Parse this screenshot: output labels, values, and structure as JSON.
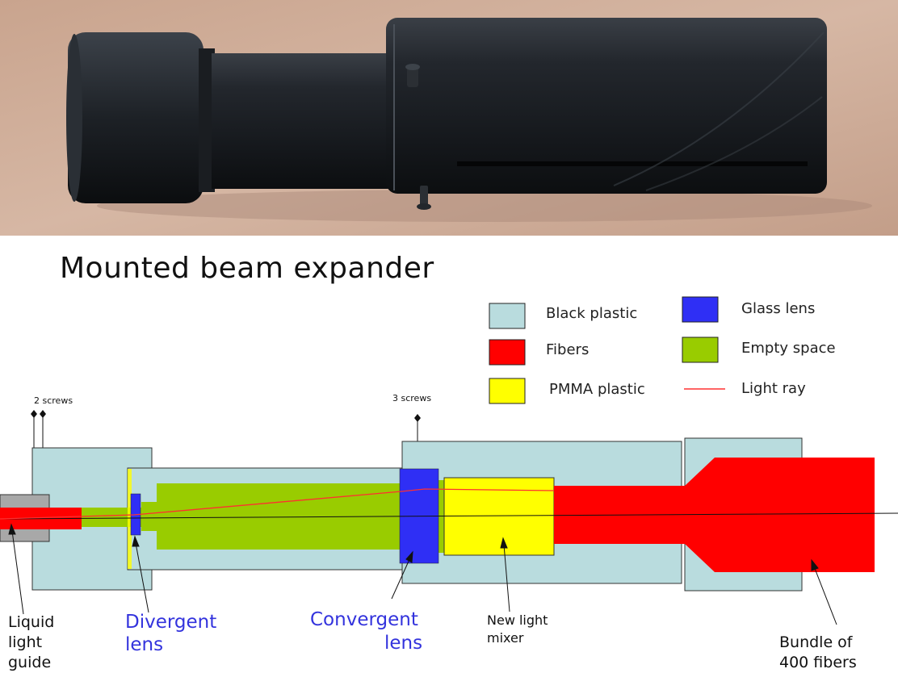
{
  "photo_caption": "Mounted beam expander",
  "legend": [
    {
      "label": "Black plastic",
      "color": "#b9dcde"
    },
    {
      "label": "Glass lens",
      "color": "#2f2ff5"
    },
    {
      "label": "Fibers",
      "color": "#ff0000"
    },
    {
      "label": "Empty space",
      "color": "#99cc00"
    },
    {
      "label": "PMMA plastic",
      "color": "#ffff00"
    },
    {
      "label": "Light ray",
      "color": "#ff3030"
    }
  ],
  "screw_labels": {
    "left": "2 screws",
    "middle": "3 screws"
  },
  "part_labels": {
    "liquid_light_guide": [
      "Liquid",
      "light",
      "guide"
    ],
    "divergent_lens": [
      "Divergent",
      "lens"
    ],
    "convergent_lens": [
      "Convergent",
      "lens"
    ],
    "new_light_mixer": [
      "New light",
      "mixer"
    ],
    "bundle_of_fibers": [
      "Bundle of",
      "400 fibers"
    ]
  },
  "colors": {
    "black_plastic": "#b9dcde",
    "glass_lens": "#2f2ff5",
    "fibers": "#ff0000",
    "empty_space": "#99cc00",
    "pmma_plastic": "#ffff00",
    "light_ray": "#ff3030",
    "guide_housing": "#a8a8a8",
    "label_blue": "#3333dd"
  }
}
